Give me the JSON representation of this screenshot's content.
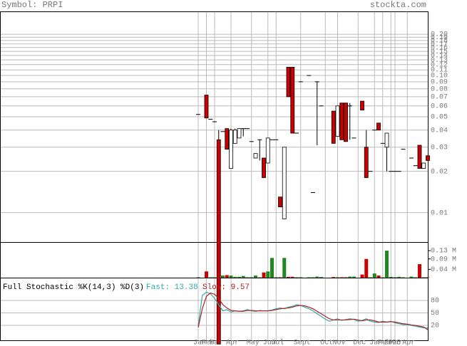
{
  "header": {
    "symbol": "Symbol: PRPI",
    "site": "stockta.com"
  },
  "chart_data": [
    {
      "type": "candlestick",
      "log_scale": true,
      "grid": true,
      "up_color": "#ffffff",
      "down_color": "#cc0000",
      "ylim": [
        0.0061,
        0.29
      ],
      "yticks": [
        0.01,
        0.02,
        0.03,
        0.04,
        0.05,
        0.06,
        0.07,
        0.08,
        0.09,
        {
          "value": 0.1,
          "label": "0.10"
        },
        0.11,
        0.12,
        0.13,
        0.14,
        0.15,
        0.16,
        0.17,
        0.18,
        0.19,
        {
          "value": 0.2,
          "label": "0.20"
        }
      ],
      "xticks": [
        {
          "value": 0,
          "label": "Jan"
        },
        {
          "value": 2,
          "label": "Feb"
        },
        {
          "value": 4,
          "label": "Mar"
        },
        {
          "value": 8,
          "label": "Apr"
        },
        {
          "value": 13,
          "label": "May"
        },
        {
          "value": 17,
          "label": "Jun"
        },
        {
          "value": 19,
          "label": "Jul"
        },
        {
          "value": 25,
          "label": "Sept"
        },
        {
          "value": 31,
          "label": "Oct"
        },
        {
          "value": 34,
          "label": "Nov"
        },
        {
          "value": 39,
          "label": "Dec"
        },
        {
          "value": 43,
          "label": "Jan"
        },
        {
          "value": 45,
          "label": "Feb"
        },
        {
          "value": 47,
          "label": "2025"
        },
        {
          "value": 48,
          "label": "Mar"
        },
        {
          "value": 51,
          "label": "Apr"
        }
      ],
      "open": [
        0.052,
        null,
        0.072,
        0.048,
        0.046,
        0.034,
        0.039,
        0.041,
        0.021,
        0.032,
        0.035,
        0.041,
        0.041,
        0.033,
        0.025,
        0.034,
        0.025,
        0.023,
        0.034,
        0.034,
        0.013,
        0.009,
        0.115,
        0.115,
        0.038,
        0.09,
        null,
        0.1,
        0.014,
        0.09,
        0.06,
        null,
        null,
        0.055,
        0.036,
        0.063,
        0.063,
        0.06,
        0.035,
        null,
        0.065,
        0.03,
        0.02,
        0.04,
        0.045,
        0.032,
        0.03,
        0.02,
        0.02,
        0.02,
        0.029,
        null,
        0.025,
        0.022,
        0.031,
        0.021,
        0.026
      ],
      "high": [
        0.052,
        null,
        0.072,
        0.048,
        0.046,
        0.04,
        0.039,
        0.041,
        0.041,
        0.041,
        0.041,
        0.041,
        0.041,
        0.033,
        0.027,
        0.034,
        0.025,
        0.035,
        0.034,
        0.034,
        0.013,
        0.03,
        0.115,
        0.115,
        0.038,
        0.09,
        null,
        0.1,
        0.014,
        0.09,
        0.06,
        null,
        null,
        0.055,
        0.06,
        0.063,
        0.063,
        0.063,
        0.035,
        null,
        0.065,
        0.04,
        0.02,
        0.04,
        0.045,
        0.032,
        0.038,
        0.02,
        0.02,
        0.02,
        0.029,
        null,
        0.025,
        0.022,
        0.031,
        0.023,
        0.026
      ],
      "low": [
        0.052,
        null,
        0.049,
        0.048,
        0.046,
        0.0011,
        0.039,
        0.029,
        0.021,
        0.032,
        0.035,
        0.036,
        0.041,
        0.033,
        0.025,
        0.024,
        0.018,
        0.023,
        0.034,
        0.034,
        0.011,
        0.009,
        0.07,
        0.038,
        0.038,
        0.09,
        null,
        0.1,
        0.014,
        0.031,
        0.06,
        null,
        null,
        0.032,
        0.036,
        0.034,
        0.033,
        0.034,
        0.035,
        null,
        0.056,
        0.018,
        0.02,
        0.04,
        0.04,
        0.032,
        0.02,
        0.02,
        0.02,
        0.02,
        0.029,
        null,
        0.025,
        0.022,
        0.021,
        0.021,
        0.024
      ],
      "close": [
        0.052,
        null,
        0.049,
        0.048,
        0.046,
        0.0011,
        0.039,
        0.029,
        0.04,
        0.04,
        0.041,
        0.041,
        0.041,
        0.033,
        0.027,
        0.034,
        0.018,
        0.035,
        0.034,
        0.034,
        0.011,
        0.03,
        0.07,
        0.038,
        0.038,
        0.09,
        null,
        0.1,
        0.014,
        0.09,
        0.06,
        null,
        null,
        0.032,
        0.06,
        0.034,
        0.033,
        0.06,
        0.035,
        null,
        0.056,
        0.018,
        0.02,
        0.04,
        0.04,
        0.032,
        0.038,
        0.02,
        0.02,
        0.02,
        0.029,
        null,
        0.025,
        0.022,
        0.021,
        0.023,
        0.024
      ]
    },
    {
      "type": "bar",
      "up_color": "#228822",
      "down_color": "#cc0000",
      "ylim": [
        0,
        0.17
      ],
      "yticks": [
        {
          "value": 0.04,
          "label": "0.04 M"
        },
        {
          "value": 0.09,
          "label": "0.09 M"
        },
        {
          "value": 0.13,
          "label": "0.13 M"
        }
      ],
      "values": [
        0.002,
        null,
        0.03,
        0.002,
        0.002,
        0.005,
        0.01,
        0.012,
        0.01,
        0.004,
        0.004,
        0.008,
        0.002,
        0.002,
        0.01,
        0.002,
        0.025,
        0.03,
        0.095,
        0.002,
        0.002,
        0.095,
        0.004,
        0.004,
        0.002,
        0.002,
        null,
        0.002,
        0.002,
        0.005,
        0.003,
        null,
        null,
        0.003,
        0.002,
        0.002,
        0.002,
        0.005,
        0.005,
        null,
        0.015,
        0.09,
        0.002,
        0.02,
        0.01,
        0.002,
        0.13,
        0.004,
        0.002,
        0.004,
        0.002,
        null,
        0.005,
        0.002,
        0.065,
        0.002,
        0.002
      ]
    },
    {
      "type": "line",
      "title": "Full Stochastic %K(14,3) %D(3)",
      "ylim": [
        0,
        100
      ],
      "yticks": [
        20,
        50,
        80
      ],
      "grid": true,
      "series": [
        {
          "name": "Fast: 13.38",
          "color": "#33aaaa",
          "values": [
            20,
            92,
            100,
            96,
            85,
            70,
            55,
            58,
            52,
            55,
            54,
            55,
            58,
            55,
            54,
            56,
            55,
            55,
            57,
            60,
            62,
            60,
            64,
            66,
            70,
            68,
            64,
            60,
            55,
            48,
            42,
            35,
            30,
            33,
            36,
            32,
            34,
            36,
            34,
            30,
            32,
            36,
            30,
            28,
            27,
            30,
            28,
            30,
            26,
            24,
            22,
            22,
            20,
            18,
            16,
            14,
            13.38
          ]
        },
        {
          "name": "Slow: 9.57",
          "color": "#aa2222",
          "values": [
            15,
            60,
            90,
            98,
            95,
            85,
            70,
            62,
            56,
            55,
            54,
            54,
            56,
            56,
            55,
            55,
            55,
            55,
            56,
            58,
            60,
            61,
            62,
            64,
            67,
            68,
            67,
            64,
            60,
            54,
            48,
            42,
            36,
            33,
            33,
            33,
            33,
            34,
            35,
            33,
            31,
            33,
            33,
            31,
            28,
            28,
            28,
            29,
            28,
            26,
            24,
            23,
            21,
            20,
            18,
            16,
            9.57
          ]
        }
      ]
    }
  ]
}
